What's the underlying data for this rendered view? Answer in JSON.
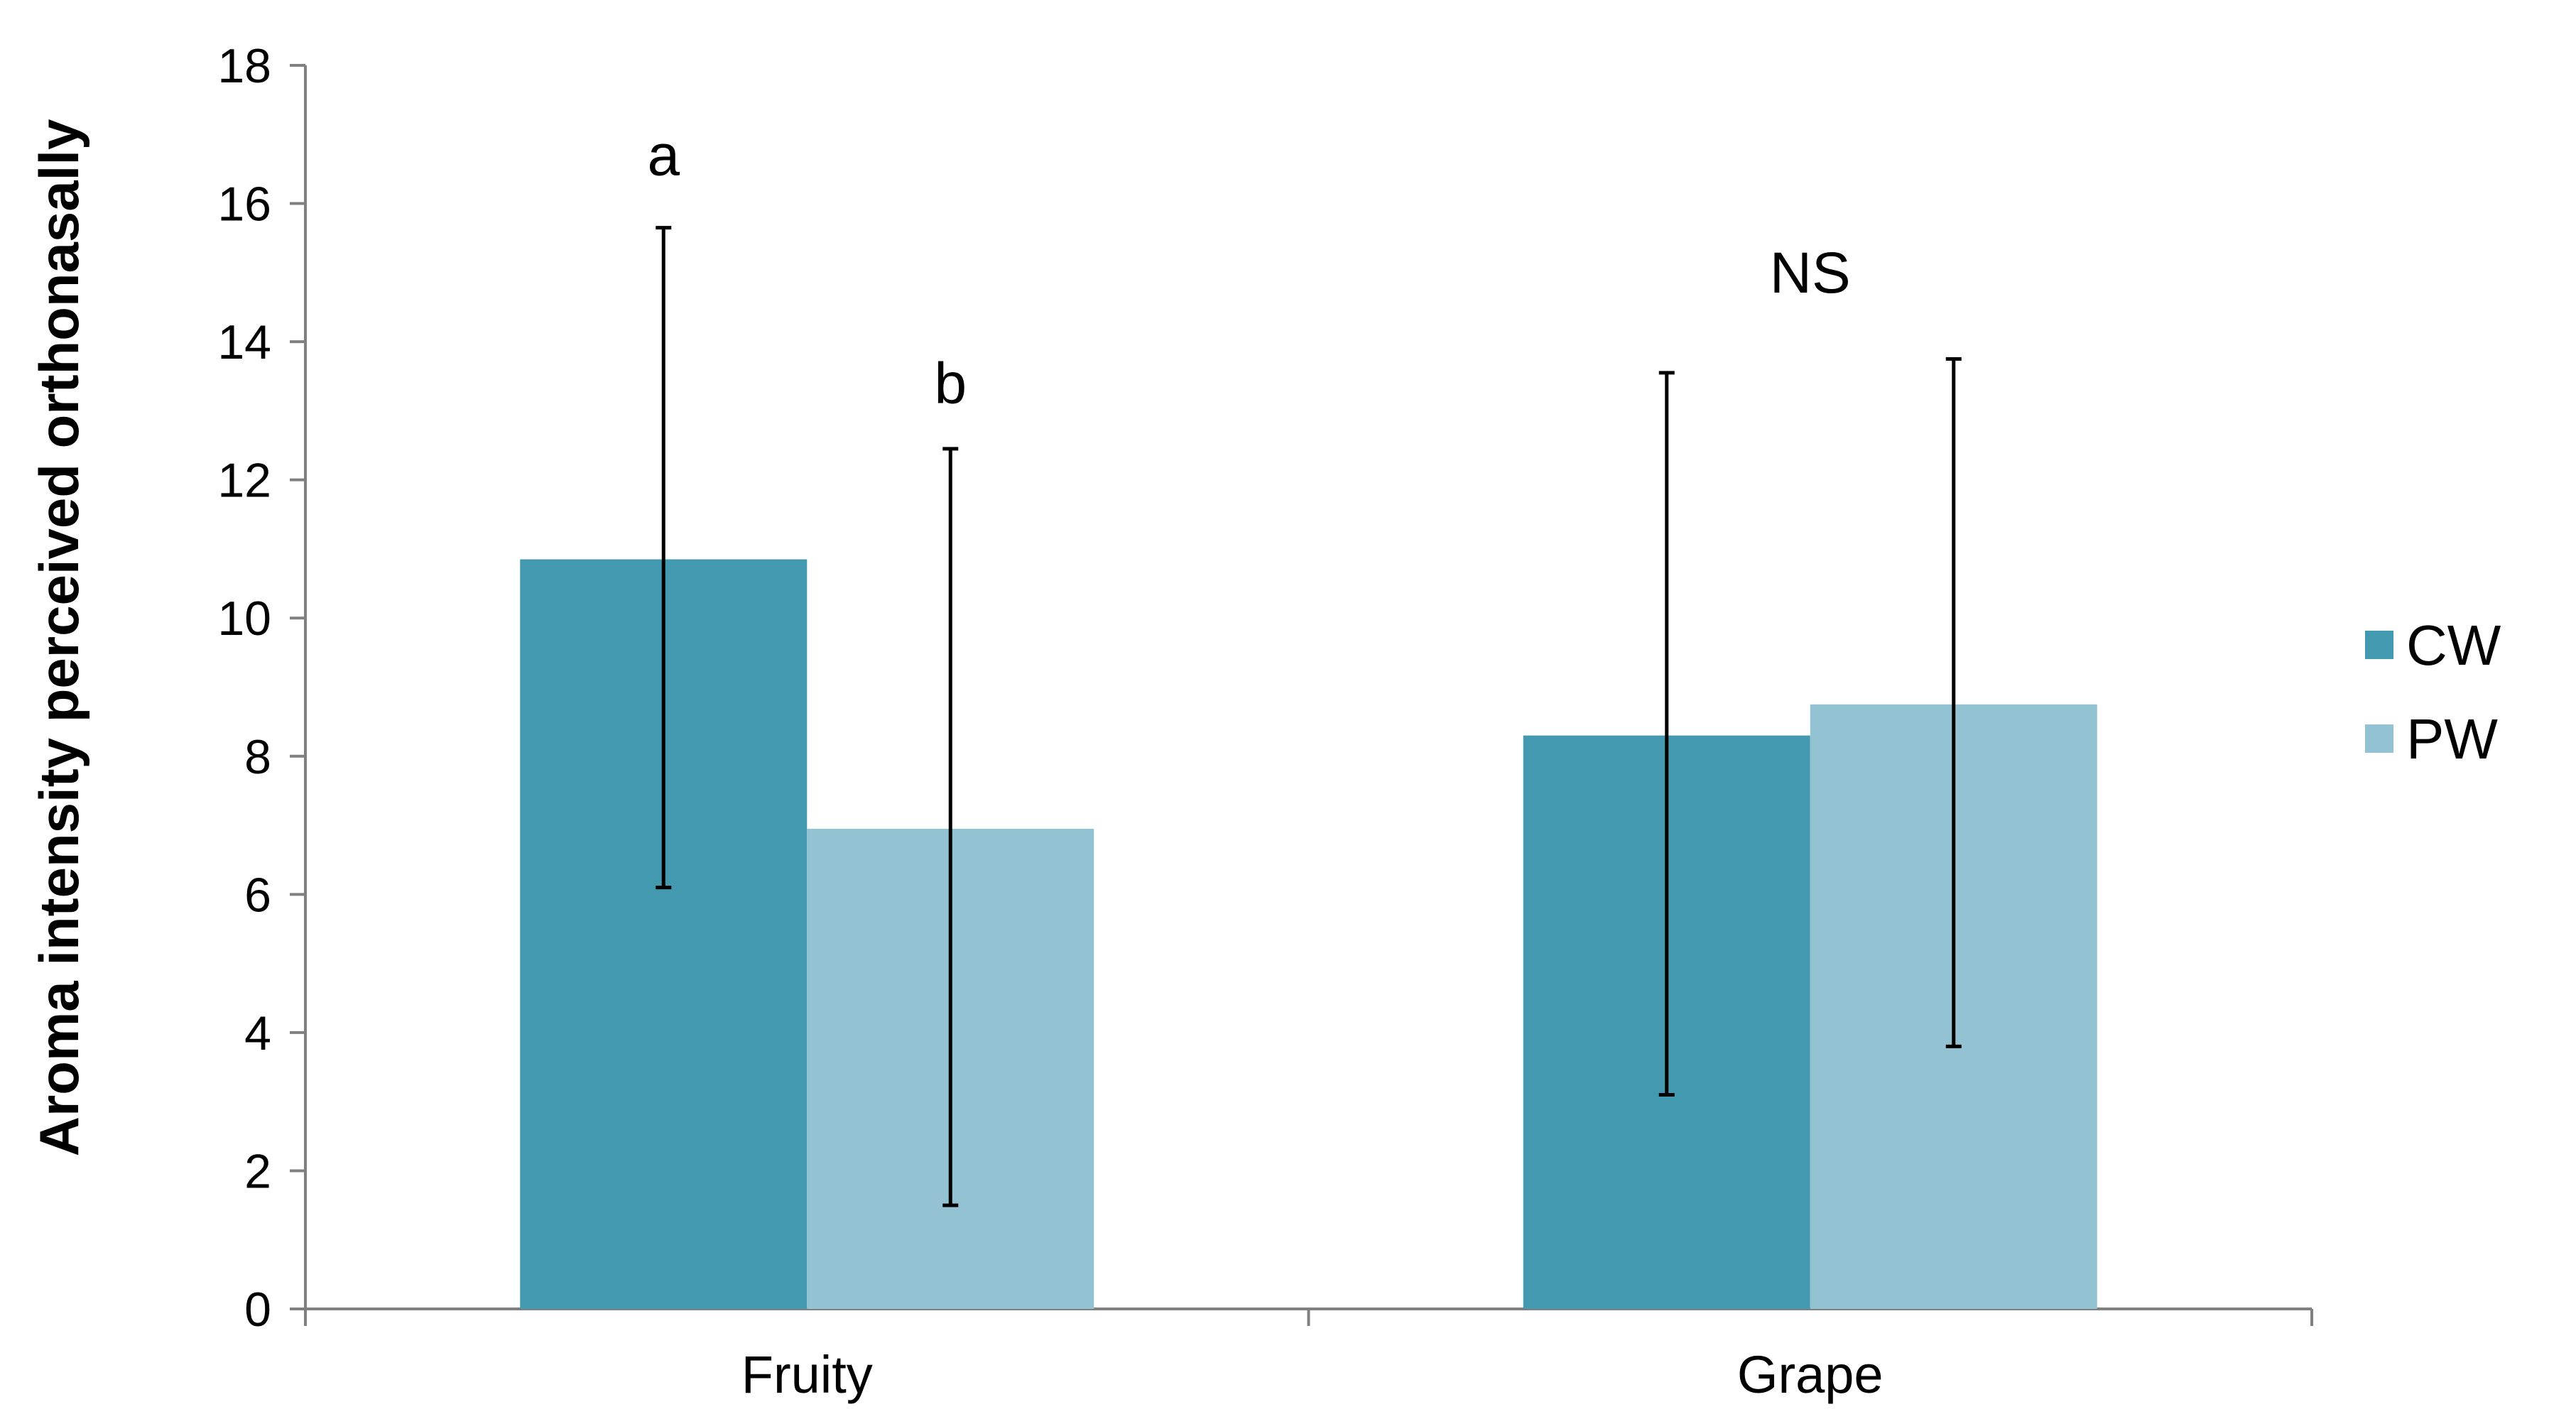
{
  "chart_data": {
    "type": "bar",
    "categories": [
      "Fruity",
      "Grape"
    ],
    "series": [
      {
        "name": "CW",
        "values": [
          10.85,
          8.3
        ],
        "error_low": [
          6.1,
          3.1
        ],
        "error_high": [
          15.65,
          13.55
        ],
        "color": "#4399b0"
      },
      {
        "name": "PW",
        "values": [
          6.95,
          8.75
        ],
        "error_low": [
          1.5,
          3.8
        ],
        "error_high": [
          12.45,
          13.75
        ],
        "color": "#93c3d3"
      }
    ],
    "ylabel": "Aroma intensity perceived orthonasally",
    "ylim": [
      0,
      18
    ],
    "yticks": [
      0,
      2,
      4,
      6,
      8,
      10,
      12,
      14,
      16,
      18
    ],
    "grid": false,
    "legend_position": "right",
    "annotations": [
      {
        "text": "a",
        "category": "Fruity",
        "series": "CW",
        "y": 16.7
      },
      {
        "text": "b",
        "category": "Fruity",
        "series": "PW",
        "y": 13.4
      },
      {
        "text": "NS",
        "category": "Grape",
        "series": "both",
        "y": 15.0
      }
    ],
    "axis_color": "#808080",
    "error_bar_color": "#000000"
  }
}
